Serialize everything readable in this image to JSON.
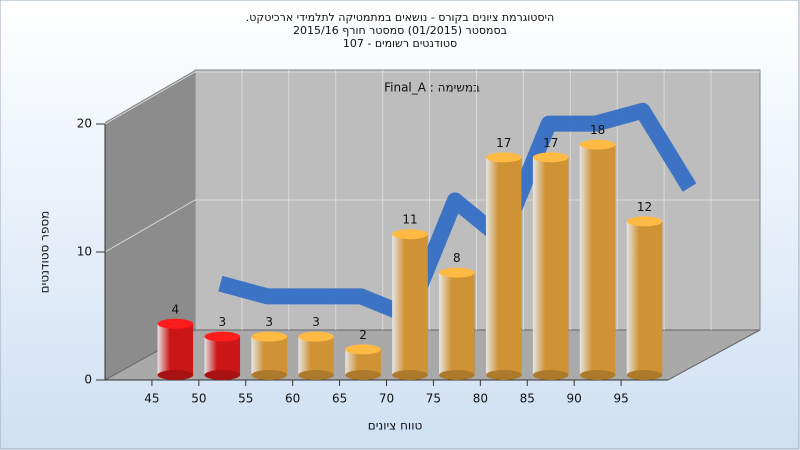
{
  "chart_data": {
    "type": "bar3d",
    "title": [
      "היסטוגרמת ציונים בקורס - נושאים במתמטיקה לתלמידי ארכיטקט.",
      "בסמסטר  (01/2015)  סמסטר חורף 2015/16",
      "סטודנטים רשומים - 107"
    ],
    "annotation": "במשימה : Final_A",
    "x_label": "טווח ציונים",
    "y_label": "מספר סטודנטים",
    "x": [
      45,
      50,
      55,
      60,
      65,
      70,
      75,
      80,
      85,
      90,
      95
    ],
    "xlim": [
      40,
      100
    ],
    "xticks": [
      45,
      50,
      55,
      60,
      65,
      70,
      75,
      80,
      85,
      90,
      95
    ],
    "ylim": [
      0,
      20
    ],
    "yticks": [
      0,
      10,
      20
    ],
    "grid": true,
    "series": [
      {
        "type": "bar",
        "values": [
          4,
          3,
          3,
          3,
          2,
          11,
          8,
          17,
          17,
          18,
          12
        ],
        "colors": [
          "#e01818",
          "#e01818",
          "#e6a23a",
          "#e6a23a",
          "#e6a23a",
          "#e6a23a",
          "#e6a23a",
          "#e6a23a",
          "#e6a23a",
          "#e6a23a",
          "#e6a23a"
        ]
      },
      {
        "type": "line",
        "color": "#356fc4",
        "values": [
          5.5,
          4.5,
          4.5,
          4.5,
          3,
          12,
          9,
          18,
          18,
          19,
          13
        ]
      }
    ]
  }
}
